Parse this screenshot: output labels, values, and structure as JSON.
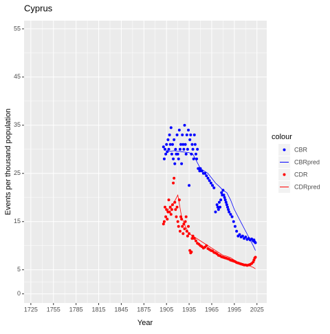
{
  "chart_data": {
    "type": "scatter",
    "title": "Cyprus",
    "x_label": "Year",
    "y_label": "Events per thousand population",
    "xlim": [
      1716,
      2038
    ],
    "xticks": [
      1725,
      1755,
      1785,
      1815,
      1845,
      1875,
      1905,
      1935,
      1965,
      1995,
      2025
    ],
    "ylim": [
      -1.9,
      56.7
    ],
    "yticks": [
      0,
      5,
      15,
      25,
      35,
      45,
      55
    ],
    "grid": true,
    "legend_title": "colour",
    "legend_position": "right",
    "series": [
      {
        "name": "CBR",
        "color": "#0000FF",
        "style": "points",
        "x": [
          1901,
          1902,
          1903,
          1904,
          1905,
          1906,
          1907,
          1908,
          1909,
          1910,
          1911,
          1912,
          1913,
          1914,
          1915,
          1916,
          1917,
          1918,
          1919,
          1920,
          1921,
          1922,
          1923,
          1924,
          1925,
          1926,
          1927,
          1928,
          1929,
          1930,
          1931,
          1932,
          1933,
          1934,
          1935,
          1936,
          1937,
          1938,
          1939,
          1940,
          1941,
          1942,
          1943,
          1944,
          1945,
          1946,
          1947,
          1948,
          1949,
          1950,
          1952,
          1954,
          1956,
          1958,
          1960,
          1962,
          1964,
          1966,
          1968,
          1970,
          1972,
          1973,
          1974,
          1975,
          1976,
          1977,
          1978,
          1979,
          1980,
          1981,
          1982,
          1983,
          1984,
          1985,
          1986,
          1987,
          1988,
          1990,
          1992,
          1994,
          1996,
          1998,
          2000,
          2002,
          2004,
          2006,
          2008,
          2010,
          2012,
          2014,
          2016,
          2018,
          2020,
          2021,
          2022,
          2023
        ],
        "values": [
          30.5,
          28,
          30,
          29,
          31,
          29.5,
          32,
          30,
          33,
          31,
          34.5,
          29,
          31,
          28,
          32,
          27,
          30,
          29,
          33,
          29,
          28,
          34,
          30,
          31,
          27,
          33,
          31,
          30,
          35,
          31,
          29,
          33,
          30,
          34,
          22.5,
          32,
          33,
          29,
          31,
          30,
          28,
          33,
          31,
          29,
          28,
          30,
          26,
          26,
          25.5,
          26,
          25.5,
          25,
          25,
          24.5,
          24,
          23.5,
          23,
          22.5,
          22,
          17,
          18.5,
          18,
          17.5,
          19,
          18,
          19.5,
          21,
          20.5,
          21.5,
          20.5,
          20,
          19.5,
          19,
          18.5,
          18,
          17.5,
          17,
          16.5,
          16,
          15,
          14,
          13,
          12,
          12.3,
          11.8,
          12,
          11.5,
          11.8,
          11.3,
          11.5,
          11.2,
          11.4,
          11,
          11.2,
          10.8,
          10.6
        ]
      },
      {
        "name": "CBRpred",
        "color": "#0000FF",
        "style": "line",
        "x": [
          1905,
          1910,
          1915,
          1920,
          1925,
          1930,
          1935,
          1940,
          1945,
          1950,
          1955,
          1960,
          1965,
          1970,
          1975,
          1980,
          1985,
          1990,
          1995,
          2000,
          2005,
          2010,
          2015,
          2020,
          2023
        ],
        "values": [
          29.5,
          29.6,
          29.7,
          29.6,
          29.5,
          29.4,
          29.3,
          29,
          27.5,
          26,
          25.5,
          25,
          24,
          23,
          22.3,
          21.5,
          21,
          19.5,
          17.5,
          16,
          14.5,
          13,
          11.5,
          10,
          9
        ]
      },
      {
        "name": "CDR",
        "color": "#FF0000",
        "style": "points",
        "x": [
          1901,
          1902,
          1903,
          1904,
          1905,
          1906,
          1907,
          1908,
          1909,
          1910,
          1911,
          1912,
          1913,
          1914,
          1915,
          1916,
          1917,
          1918,
          1919,
          1920,
          1921,
          1922,
          1923,
          1924,
          1925,
          1926,
          1927,
          1928,
          1929,
          1930,
          1931,
          1932,
          1933,
          1934,
          1935,
          1936,
          1937,
          1938,
          1939,
          1940,
          1942,
          1944,
          1946,
          1948,
          1950,
          1952,
          1954,
          1956,
          1958,
          1960,
          1962,
          1964,
          1966,
          1968,
          1970,
          1972,
          1974,
          1976,
          1978,
          1980,
          1982,
          1984,
          1986,
          1988,
          1990,
          1992,
          1994,
          1996,
          1998,
          2000,
          2002,
          2004,
          2006,
          2008,
          2010,
          2012,
          2014,
          2016,
          2018,
          2020,
          2021,
          2022,
          2023
        ],
        "values": [
          14.5,
          15,
          18,
          16,
          17.5,
          15.5,
          17,
          19.5,
          17,
          18,
          16.5,
          17.5,
          18.5,
          23,
          24,
          19,
          17.5,
          16,
          18,
          15,
          14,
          19.5,
          13,
          16,
          15.5,
          14,
          12.5,
          14.5,
          13.5,
          15,
          16,
          13,
          12,
          14,
          12.5,
          9,
          8.5,
          8.7,
          11.5,
          12,
          11.5,
          11,
          10.5,
          10.3,
          10,
          9.8,
          9.5,
          9.7,
          10,
          9.4,
          9.2,
          9,
          8.9,
          8.6,
          8.5,
          8.3,
          8,
          7.9,
          7.7,
          7.6,
          7.5,
          7.4,
          7.3,
          7.2,
          7,
          6.9,
          6.8,
          6.7,
          6.5,
          6.4,
          6.3,
          6.2,
          6.1,
          6,
          6,
          5.9,
          6,
          6.1,
          6.3,
          6.6,
          7,
          7.4,
          7.6
        ]
      },
      {
        "name": "CDRpred",
        "color": "#FF0000",
        "style": "line",
        "x": [
          1905,
          1910,
          1915,
          1920,
          1925,
          1930,
          1935,
          1940,
          1945,
          1950,
          1955,
          1960,
          1965,
          1970,
          1975,
          1980,
          1985,
          1990,
          1995,
          2000,
          2005,
          2010,
          2015,
          2020,
          2023
        ],
        "values": [
          17,
          18,
          19,
          20.5,
          16,
          14,
          12.5,
          12,
          11.5,
          11,
          10.5,
          10,
          9.5,
          9,
          8.5,
          8,
          7.8,
          7.5,
          7,
          6.5,
          6.2,
          6,
          5.8,
          5.5,
          5.2
        ]
      }
    ]
  }
}
